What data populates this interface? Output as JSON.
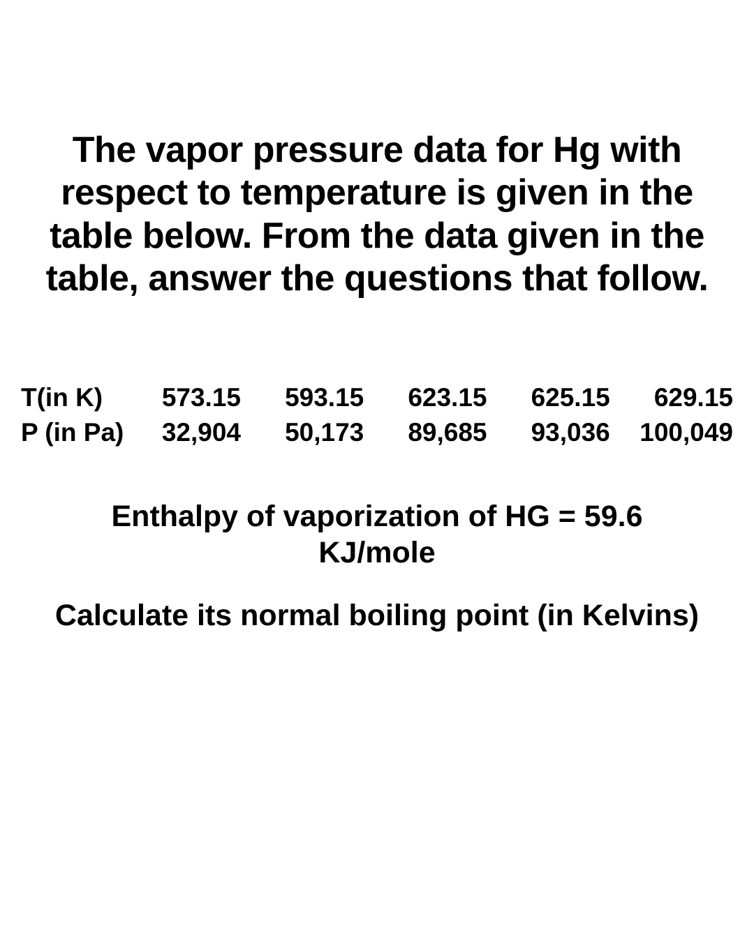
{
  "title": "The vapor pressure data for Hg with respect to temperature is given in the table below. From the data given in the table, answer the questions that follow.",
  "table": {
    "row1": {
      "label": "T(in K)",
      "values": [
        "573.15",
        "593.15",
        "623.15",
        "625.15",
        "629.15"
      ]
    },
    "row2": {
      "label": "P (in Pa)",
      "values": [
        "32,904",
        "50,173",
        "89,685",
        "93,036",
        "100,049"
      ]
    }
  },
  "enthalpy": "Enthalpy of vaporization of HG = 59.6 KJ/mole",
  "question": "Calculate its normal boiling point (in Kelvins)",
  "colors": {
    "background": "#ffffff",
    "text": "#000000"
  },
  "typography": {
    "title_fontsize": 52,
    "table_fontsize": 37,
    "subtitle_fontsize": 43,
    "font_family": "Arial"
  }
}
